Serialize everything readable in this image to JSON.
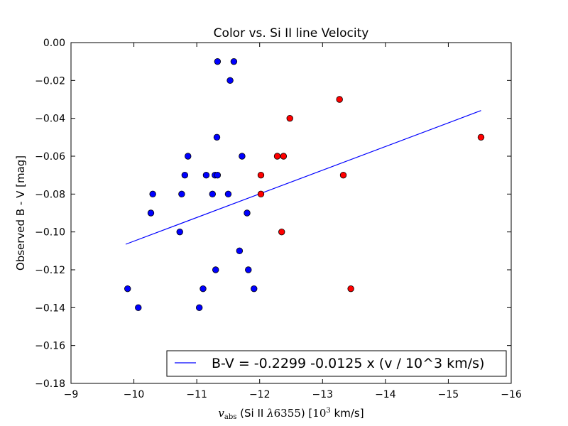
{
  "chart_data": {
    "type": "scatter",
    "title": "Color vs. Si II line Velocity",
    "xlabel": "v_abs (Si II λ6355) [10^3  km/s]",
    "xlabel_parts": {
      "v": "v",
      "sub": "abs",
      "mid": " (Si II ",
      "lambda": "λ",
      "line": "6355",
      "close": ") [",
      "unit_base": "10",
      "unit_exp": "3",
      "unit_rest": "  km/s]"
    },
    "ylabel": "Observed B - V [mag]",
    "xlim": [
      -9,
      -16
    ],
    "ylim": [
      -0.18,
      0.0
    ],
    "x_inverted": true,
    "xticks": [
      -9,
      -10,
      -11,
      -12,
      -13,
      -14,
      -15,
      -16
    ],
    "xtick_labels": [
      "−9",
      "−10",
      "−11",
      "−12",
      "−13",
      "−14",
      "−15",
      "−16"
    ],
    "yticks": [
      0.0,
      -0.02,
      -0.04,
      -0.06,
      -0.08,
      -0.1,
      -0.12,
      -0.14,
      -0.16,
      -0.18
    ],
    "ytick_labels": [
      "0.00",
      "−0.02",
      "−0.04",
      "−0.06",
      "−0.08",
      "−0.10",
      "−0.12",
      "−0.14",
      "−0.16",
      "−0.18"
    ],
    "grid": false,
    "legend_position": "lower-right",
    "series": [
      {
        "color": "#0000ff",
        "marker": "circle",
        "points": [
          [
            -9.9,
            -0.13
          ],
          [
            -10.07,
            -0.14
          ],
          [
            -10.27,
            -0.09
          ],
          [
            -10.3,
            -0.08
          ],
          [
            -10.73,
            -0.1
          ],
          [
            -10.76,
            -0.08
          ],
          [
            -10.81,
            -0.07
          ],
          [
            -10.86,
            -0.06
          ],
          [
            -11.04,
            -0.14
          ],
          [
            -11.1,
            -0.13
          ],
          [
            -11.15,
            -0.07
          ],
          [
            -11.25,
            -0.08
          ],
          [
            -11.29,
            -0.07
          ],
          [
            -11.3,
            -0.12
          ],
          [
            -11.32,
            -0.05
          ],
          [
            -11.33,
            -0.07
          ],
          [
            -11.33,
            -0.01
          ],
          [
            -11.5,
            -0.08
          ],
          [
            -11.53,
            -0.02
          ],
          [
            -11.59,
            -0.01
          ],
          [
            -11.68,
            -0.11
          ],
          [
            -11.72,
            -0.06
          ],
          [
            -11.8,
            -0.09
          ],
          [
            -11.82,
            -0.12
          ],
          [
            -11.91,
            -0.13
          ]
        ]
      },
      {
        "color": "#ff0000",
        "marker": "circle",
        "points": [
          [
            -12.02,
            -0.07
          ],
          [
            -12.02,
            -0.08
          ],
          [
            -12.28,
            -0.06
          ],
          [
            -12.35,
            -0.1
          ],
          [
            -12.38,
            -0.06
          ],
          [
            -12.48,
            -0.04
          ],
          [
            -13.27,
            -0.03
          ],
          [
            -13.33,
            -0.07
          ],
          [
            -13.45,
            -0.13
          ],
          [
            -15.52,
            -0.05
          ]
        ]
      },
      {
        "name": "B-V = -0.2299 -0.0125 x (v / 10^3 km/s)",
        "type": "line",
        "color": "#0000ff",
        "x": [
          -9.87,
          -15.52
        ],
        "y": [
          -0.1065,
          -0.0359
        ]
      }
    ]
  }
}
